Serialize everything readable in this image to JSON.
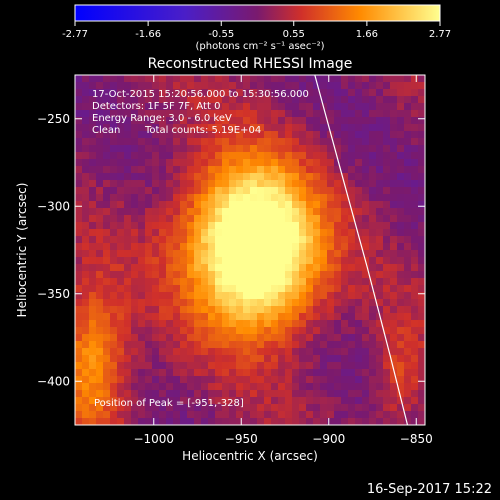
{
  "colorbar": {
    "ticks": [
      "-2.77",
      "-1.66",
      "-0.55",
      "0.55",
      "1.66",
      "2.77"
    ],
    "tick_values": [
      -2.77,
      -1.66,
      -0.55,
      0.55,
      1.66,
      2.77
    ],
    "range": [
      -2.77,
      2.77
    ],
    "unit_label": "(photons cm⁻² s⁻¹ asec⁻²)"
  },
  "chart_data": {
    "type": "heatmap",
    "title": "Reconstructed RHESSI Image",
    "xlabel": "Heliocentric X (arcsec)",
    "ylabel": "Heliocentric Y (arcsec)",
    "xlim": [
      -1045,
      -845
    ],
    "ylim": [
      -425,
      -225
    ],
    "x_ticks": [
      -1000,
      -950,
      -900,
      -850
    ],
    "y_ticks": [
      -250,
      -300,
      -350,
      -400
    ],
    "x_tick_labels": [
      "−1000",
      "−950",
      "−900",
      "−850"
    ],
    "y_tick_labels": [
      "−250",
      "−300",
      "−350",
      "−400"
    ],
    "sources": [
      {
        "x": -948,
        "y": -320,
        "peak": 2.77,
        "sx": 26,
        "sy": 32
      },
      {
        "x": -935,
        "y": -330,
        "peak": 1.6,
        "sx": 22,
        "sy": 30
      },
      {
        "x": -1035,
        "y": -390,
        "peak": 1.7,
        "sx": 14,
        "sy": 30
      },
      {
        "x": -860,
        "y": -398,
        "peak": 0.8,
        "sx": 10,
        "sy": 22
      }
    ],
    "limb_points": [
      [
        -908,
        -225
      ],
      [
        -893,
        -280
      ],
      [
        -878,
        -335
      ],
      [
        -865,
        -385
      ],
      [
        -855,
        -425
      ]
    ],
    "annotations": {
      "time_range": "17-Oct-2015 15:20:56.000 to 15:30:56.000",
      "detectors": "Detectors: 1F 5F 7F, Att 0",
      "energy_range": "Energy Range: 3.0 - 6.0 keV",
      "method": "Clean",
      "total_counts": "Total counts: 5.19E+04",
      "peak_position": "Position of Peak = [-951,-328]"
    }
  },
  "footer": {
    "timestamp": "16-Sep-2017 15:22"
  },
  "colors": {
    "background": "#000000",
    "text": "#ffffff",
    "limb": "#ffffff"
  }
}
